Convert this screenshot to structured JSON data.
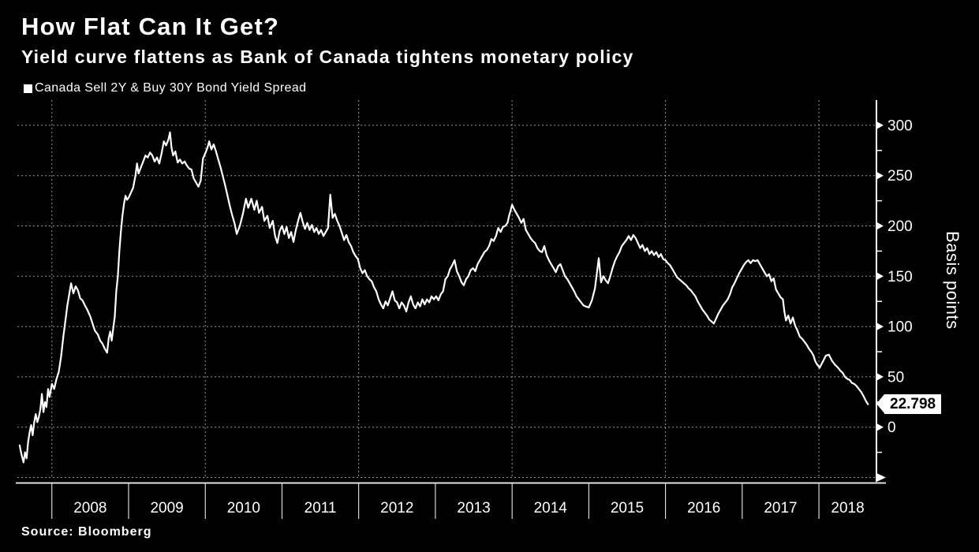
{
  "header": {
    "title": "How Flat Can It Get?",
    "subtitle": "Yield curve flattens as Bank of Canada tightens monetary policy"
  },
  "legend": {
    "label": "Canada Sell 2Y & Buy 30Y Bond Yield Spread",
    "swatch_color": "#ffffff"
  },
  "footer": {
    "source": "Source: Bloomberg"
  },
  "chart_data": {
    "type": "line",
    "title": "How Flat Can It Get?",
    "subtitle": "Yield curve flattens as Bank of Canada tightens monetary policy",
    "series_name": "Canada Sell 2Y & Buy 30Y Bond Yield Spread",
    "ylabel": "Basis points",
    "xlabel": "",
    "background": "#000000",
    "line_color": "#ffffff",
    "grid_color": "#999999",
    "ylim": [
      -50,
      325
    ],
    "xlim": [
      2007.55,
      2018.75
    ],
    "y_ticks": [
      0,
      50,
      100,
      150,
      200,
      250,
      300
    ],
    "y_minor_ticks": [
      -25,
      25,
      75,
      125,
      175,
      225,
      275
    ],
    "x_tick_years": [
      2008,
      2009,
      2010,
      2011,
      2012,
      2013,
      2014,
      2015,
      2016,
      2017,
      2018
    ],
    "x_gridline_years": [
      2008,
      2010,
      2012,
      2014,
      2016,
      2018
    ],
    "grid": "dotted",
    "legend_position": "top-left",
    "last_value_label": "22.798",
    "last_value": 22.798,
    "points": [
      [
        2007.58,
        -18
      ],
      [
        2007.6,
        -26
      ],
      [
        2007.63,
        -35
      ],
      [
        2007.65,
        -25
      ],
      [
        2007.67,
        -31
      ],
      [
        2007.69,
        -15
      ],
      [
        2007.71,
        -5
      ],
      [
        2007.73,
        2
      ],
      [
        2007.75,
        -8
      ],
      [
        2007.77,
        5
      ],
      [
        2007.79,
        13
      ],
      [
        2007.81,
        5
      ],
      [
        2007.83,
        10
      ],
      [
        2007.85,
        18
      ],
      [
        2007.87,
        33
      ],
      [
        2007.89,
        15
      ],
      [
        2007.91,
        25
      ],
      [
        2007.93,
        20
      ],
      [
        2007.95,
        38
      ],
      [
        2007.97,
        30
      ],
      [
        2008.0,
        43
      ],
      [
        2008.03,
        38
      ],
      [
        2008.06,
        48
      ],
      [
        2008.09,
        55
      ],
      [
        2008.12,
        70
      ],
      [
        2008.15,
        90
      ],
      [
        2008.18,
        108
      ],
      [
        2008.2,
        120
      ],
      [
        2008.22,
        129
      ],
      [
        2008.25,
        143
      ],
      [
        2008.28,
        133
      ],
      [
        2008.31,
        140
      ],
      [
        2008.34,
        136
      ],
      [
        2008.37,
        128
      ],
      [
        2008.4,
        126
      ],
      [
        2008.43,
        121
      ],
      [
        2008.46,
        117
      ],
      [
        2008.5,
        110
      ],
      [
        2008.53,
        103
      ],
      [
        2008.56,
        96
      ],
      [
        2008.6,
        92
      ],
      [
        2008.63,
        86
      ],
      [
        2008.66,
        83
      ],
      [
        2008.69,
        78
      ],
      [
        2008.72,
        74
      ],
      [
        2008.74,
        88
      ],
      [
        2008.76,
        95
      ],
      [
        2008.78,
        86
      ],
      [
        2008.8,
        98
      ],
      [
        2008.82,
        110
      ],
      [
        2008.84,
        135
      ],
      [
        2008.86,
        150
      ],
      [
        2008.88,
        175
      ],
      [
        2008.9,
        195
      ],
      [
        2008.92,
        210
      ],
      [
        2008.94,
        222
      ],
      [
        2008.96,
        230
      ],
      [
        2008.98,
        226
      ],
      [
        2009.0,
        228
      ],
      [
        2009.03,
        233
      ],
      [
        2009.06,
        238
      ],
      [
        2009.09,
        250
      ],
      [
        2009.11,
        262
      ],
      [
        2009.13,
        252
      ],
      [
        2009.16,
        258
      ],
      [
        2009.19,
        264
      ],
      [
        2009.22,
        270
      ],
      [
        2009.25,
        268
      ],
      [
        2009.28,
        273
      ],
      [
        2009.31,
        270
      ],
      [
        2009.34,
        264
      ],
      [
        2009.37,
        268
      ],
      [
        2009.4,
        262
      ],
      [
        2009.43,
        272
      ],
      [
        2009.46,
        284
      ],
      [
        2009.49,
        280
      ],
      [
        2009.52,
        286
      ],
      [
        2009.54,
        293
      ],
      [
        2009.56,
        278
      ],
      [
        2009.58,
        270
      ],
      [
        2009.61,
        274
      ],
      [
        2009.64,
        263
      ],
      [
        2009.67,
        266
      ],
      [
        2009.7,
        262
      ],
      [
        2009.73,
        264
      ],
      [
        2009.76,
        260
      ],
      [
        2009.79,
        257
      ],
      [
        2009.82,
        256
      ],
      [
        2009.85,
        247
      ],
      [
        2009.88,
        243
      ],
      [
        2009.91,
        239
      ],
      [
        2009.94,
        245
      ],
      [
        2009.97,
        267
      ],
      [
        2010.0,
        272
      ],
      [
        2010.03,
        278
      ],
      [
        2010.05,
        284
      ],
      [
        2010.08,
        276
      ],
      [
        2010.11,
        281
      ],
      [
        2010.14,
        274
      ],
      [
        2010.17,
        266
      ],
      [
        2010.2,
        258
      ],
      [
        2010.23,
        249
      ],
      [
        2010.26,
        240
      ],
      [
        2010.29,
        230
      ],
      [
        2010.32,
        220
      ],
      [
        2010.35,
        211
      ],
      [
        2010.38,
        203
      ],
      [
        2010.41,
        192
      ],
      [
        2010.45,
        200
      ],
      [
        2010.49,
        212
      ],
      [
        2010.53,
        227
      ],
      [
        2010.56,
        218
      ],
      [
        2010.6,
        227
      ],
      [
        2010.64,
        216
      ],
      [
        2010.67,
        225
      ],
      [
        2010.7,
        213
      ],
      [
        2010.74,
        219
      ],
      [
        2010.77,
        205
      ],
      [
        2010.81,
        210
      ],
      [
        2010.84,
        198
      ],
      [
        2010.88,
        205
      ],
      [
        2010.91,
        190
      ],
      [
        2010.94,
        183
      ],
      [
        2010.97,
        195
      ],
      [
        2011.0,
        200
      ],
      [
        2011.03,
        192
      ],
      [
        2011.06,
        199
      ],
      [
        2011.09,
        188
      ],
      [
        2011.12,
        194
      ],
      [
        2011.15,
        184
      ],
      [
        2011.18,
        196
      ],
      [
        2011.21,
        205
      ],
      [
        2011.24,
        213
      ],
      [
        2011.27,
        204
      ],
      [
        2011.3,
        197
      ],
      [
        2011.33,
        203
      ],
      [
        2011.36,
        196
      ],
      [
        2011.39,
        201
      ],
      [
        2011.42,
        194
      ],
      [
        2011.45,
        198
      ],
      [
        2011.48,
        192
      ],
      [
        2011.51,
        196
      ],
      [
        2011.54,
        190
      ],
      [
        2011.57,
        194
      ],
      [
        2011.6,
        198
      ],
      [
        2011.63,
        231
      ],
      [
        2011.66,
        208
      ],
      [
        2011.69,
        212
      ],
      [
        2011.72,
        205
      ],
      [
        2011.75,
        200
      ],
      [
        2011.78,
        193
      ],
      [
        2011.81,
        186
      ],
      [
        2011.84,
        191
      ],
      [
        2011.87,
        184
      ],
      [
        2011.9,
        180
      ],
      [
        2011.93,
        174
      ],
      [
        2011.96,
        170
      ],
      [
        2011.99,
        167
      ],
      [
        2012.02,
        158
      ],
      [
        2012.05,
        153
      ],
      [
        2012.08,
        156
      ],
      [
        2012.11,
        150
      ],
      [
        2012.14,
        147
      ],
      [
        2012.17,
        145
      ],
      [
        2012.2,
        139
      ],
      [
        2012.23,
        135
      ],
      [
        2012.26,
        127
      ],
      [
        2012.29,
        122
      ],
      [
        2012.32,
        118
      ],
      [
        2012.35,
        125
      ],
      [
        2012.38,
        121
      ],
      [
        2012.41,
        128
      ],
      [
        2012.44,
        135
      ],
      [
        2012.47,
        126
      ],
      [
        2012.5,
        124
      ],
      [
        2012.53,
        118
      ],
      [
        2012.56,
        124
      ],
      [
        2012.59,
        121
      ],
      [
        2012.62,
        115
      ],
      [
        2012.65,
        124
      ],
      [
        2012.68,
        130
      ],
      [
        2012.71,
        122
      ],
      [
        2012.74,
        118
      ],
      [
        2012.77,
        124
      ],
      [
        2012.8,
        120
      ],
      [
        2012.83,
        127
      ],
      [
        2012.86,
        122
      ],
      [
        2012.89,
        127
      ],
      [
        2012.92,
        124
      ],
      [
        2012.95,
        130
      ],
      [
        2012.98,
        127
      ],
      [
        2013.01,
        130
      ],
      [
        2013.04,
        126
      ],
      [
        2013.07,
        132
      ],
      [
        2013.1,
        135
      ],
      [
        2013.13,
        147
      ],
      [
        2013.16,
        150
      ],
      [
        2013.19,
        157
      ],
      [
        2013.22,
        161
      ],
      [
        2013.25,
        166
      ],
      [
        2013.28,
        155
      ],
      [
        2013.31,
        150
      ],
      [
        2013.34,
        144
      ],
      [
        2013.37,
        141
      ],
      [
        2013.4,
        147
      ],
      [
        2013.43,
        150
      ],
      [
        2013.46,
        156
      ],
      [
        2013.49,
        158
      ],
      [
        2013.52,
        155
      ],
      [
        2013.55,
        162
      ],
      [
        2013.58,
        166
      ],
      [
        2013.61,
        170
      ],
      [
        2013.64,
        174
      ],
      [
        2013.67,
        176
      ],
      [
        2013.7,
        180
      ],
      [
        2013.73,
        187
      ],
      [
        2013.76,
        185
      ],
      [
        2013.79,
        190
      ],
      [
        2013.82,
        198
      ],
      [
        2013.85,
        194
      ],
      [
        2013.88,
        199
      ],
      [
        2013.91,
        200
      ],
      [
        2013.94,
        203
      ],
      [
        2013.96,
        210
      ],
      [
        2013.98,
        215
      ],
      [
        2014.0,
        221
      ],
      [
        2014.03,
        216
      ],
      [
        2014.06,
        212
      ],
      [
        2014.09,
        208
      ],
      [
        2014.12,
        203
      ],
      [
        2014.15,
        207
      ],
      [
        2014.18,
        196
      ],
      [
        2014.21,
        192
      ],
      [
        2014.24,
        188
      ],
      [
        2014.27,
        185
      ],
      [
        2014.3,
        183
      ],
      [
        2014.33,
        178
      ],
      [
        2014.36,
        175
      ],
      [
        2014.39,
        174
      ],
      [
        2014.42,
        180
      ],
      [
        2014.45,
        171
      ],
      [
        2014.48,
        166
      ],
      [
        2014.51,
        162
      ],
      [
        2014.54,
        158
      ],
      [
        2014.57,
        154
      ],
      [
        2014.6,
        160
      ],
      [
        2014.63,
        162
      ],
      [
        2014.66,
        156
      ],
      [
        2014.69,
        150
      ],
      [
        2014.72,
        147
      ],
      [
        2014.75,
        143
      ],
      [
        2014.78,
        139
      ],
      [
        2014.81,
        135
      ],
      [
        2014.84,
        130
      ],
      [
        2014.87,
        127
      ],
      [
        2014.9,
        124
      ],
      [
        2014.93,
        121
      ],
      [
        2014.96,
        120
      ],
      [
        2015.0,
        119
      ],
      [
        2015.04,
        126
      ],
      [
        2015.08,
        138
      ],
      [
        2015.13,
        168
      ],
      [
        2015.16,
        144
      ],
      [
        2015.19,
        150
      ],
      [
        2015.22,
        146
      ],
      [
        2015.25,
        143
      ],
      [
        2015.28,
        150
      ],
      [
        2015.31,
        158
      ],
      [
        2015.34,
        165
      ],
      [
        2015.37,
        170
      ],
      [
        2015.4,
        174
      ],
      [
        2015.43,
        180
      ],
      [
        2015.46,
        183
      ],
      [
        2015.49,
        186
      ],
      [
        2015.52,
        190
      ],
      [
        2015.55,
        186
      ],
      [
        2015.58,
        191
      ],
      [
        2015.61,
        188
      ],
      [
        2015.64,
        183
      ],
      [
        2015.67,
        178
      ],
      [
        2015.7,
        181
      ],
      [
        2015.73,
        175
      ],
      [
        2015.76,
        178
      ],
      [
        2015.79,
        172
      ],
      [
        2015.82,
        175
      ],
      [
        2015.85,
        171
      ],
      [
        2015.88,
        174
      ],
      [
        2015.91,
        169
      ],
      [
        2015.94,
        172
      ],
      [
        2015.97,
        167
      ],
      [
        2016.0,
        166
      ],
      [
        2016.03,
        163
      ],
      [
        2016.06,
        161
      ],
      [
        2016.09,
        157
      ],
      [
        2016.12,
        153
      ],
      [
        2016.15,
        149
      ],
      [
        2016.18,
        147
      ],
      [
        2016.21,
        145
      ],
      [
        2016.24,
        143
      ],
      [
        2016.27,
        141
      ],
      [
        2016.3,
        138
      ],
      [
        2016.33,
        136
      ],
      [
        2016.36,
        133
      ],
      [
        2016.39,
        130
      ],
      [
        2016.42,
        125
      ],
      [
        2016.45,
        121
      ],
      [
        2016.48,
        117
      ],
      [
        2016.51,
        114
      ],
      [
        2016.54,
        111
      ],
      [
        2016.57,
        107
      ],
      [
        2016.6,
        105
      ],
      [
        2016.63,
        103
      ],
      [
        2016.66,
        108
      ],
      [
        2016.69,
        113
      ],
      [
        2016.72,
        117
      ],
      [
        2016.75,
        121
      ],
      [
        2016.78,
        124
      ],
      [
        2016.81,
        127
      ],
      [
        2016.84,
        132
      ],
      [
        2016.87,
        139
      ],
      [
        2016.9,
        143
      ],
      [
        2016.93,
        148
      ],
      [
        2016.96,
        153
      ],
      [
        2016.99,
        157
      ],
      [
        2017.02,
        161
      ],
      [
        2017.05,
        164
      ],
      [
        2017.08,
        166
      ],
      [
        2017.11,
        163
      ],
      [
        2017.14,
        166
      ],
      [
        2017.17,
        165
      ],
      [
        2017.2,
        166
      ],
      [
        2017.23,
        162
      ],
      [
        2017.26,
        158
      ],
      [
        2017.29,
        154
      ],
      [
        2017.32,
        150
      ],
      [
        2017.35,
        152
      ],
      [
        2017.38,
        145
      ],
      [
        2017.41,
        148
      ],
      [
        2017.44,
        137
      ],
      [
        2017.47,
        133
      ],
      [
        2017.5,
        129
      ],
      [
        2017.53,
        127
      ],
      [
        2017.55,
        115
      ],
      [
        2017.57,
        106
      ],
      [
        2017.6,
        111
      ],
      [
        2017.63,
        103
      ],
      [
        2017.66,
        109
      ],
      [
        2017.69,
        101
      ],
      [
        2017.72,
        96
      ],
      [
        2017.75,
        90
      ],
      [
        2017.78,
        88
      ],
      [
        2017.81,
        85
      ],
      [
        2017.84,
        82
      ],
      [
        2017.87,
        78
      ],
      [
        2017.9,
        75
      ],
      [
        2017.93,
        71
      ],
      [
        2017.95,
        66
      ],
      [
        2017.97,
        63
      ],
      [
        2017.99,
        61
      ],
      [
        2018.01,
        59
      ],
      [
        2018.05,
        65
      ],
      [
        2018.09,
        71
      ],
      [
        2018.13,
        72
      ],
      [
        2018.17,
        66
      ],
      [
        2018.21,
        62
      ],
      [
        2018.25,
        59
      ],
      [
        2018.28,
        56
      ],
      [
        2018.31,
        54
      ],
      [
        2018.34,
        50
      ],
      [
        2018.37,
        48
      ],
      [
        2018.4,
        47
      ],
      [
        2018.43,
        44
      ],
      [
        2018.46,
        43
      ],
      [
        2018.49,
        41
      ],
      [
        2018.52,
        38
      ],
      [
        2018.55,
        35
      ],
      [
        2018.58,
        31
      ],
      [
        2018.6,
        28
      ],
      [
        2018.62,
        25
      ],
      [
        2018.64,
        22.798
      ]
    ]
  }
}
